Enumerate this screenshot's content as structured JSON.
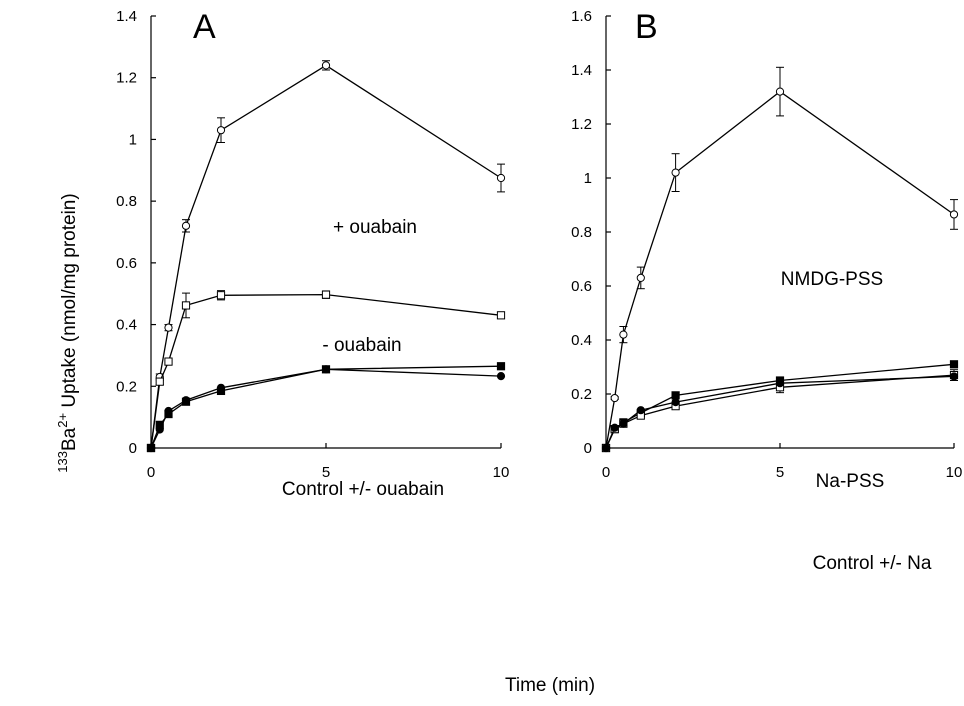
{
  "figure": {
    "xlabel": "Time (min)",
    "ylabel_prefix": "133",
    "ylabel_ion": "Ba",
    "ylabel_charge": "2+",
    "ylabel_rest": " Uptake  (nmol/mg protein)"
  },
  "chart_data": [
    {
      "type": "line",
      "panel": "A",
      "xlim": [
        0,
        10
      ],
      "ylim": [
        0,
        1.4
      ],
      "xticks": [
        0,
        5,
        10
      ],
      "yticks": [
        0,
        0.2,
        0.4,
        0.6,
        0.8,
        1,
        1.2,
        1.4
      ],
      "grid": false,
      "annotations": [
        "+ ouabain",
        "- ouabain",
        "Control +/- ouabain"
      ],
      "series": [
        {
          "marker": "open-circle",
          "x": [
            0,
            0.25,
            0.5,
            1,
            2,
            5,
            10
          ],
          "y": [
            0,
            0.23,
            0.39,
            0.72,
            1.03,
            1.24,
            0.875
          ],
          "err": [
            0,
            0.01,
            0.01,
            0.02,
            0.04,
            0.015,
            0.045
          ]
        },
        {
          "marker": "open-square",
          "x": [
            0,
            0.25,
            0.5,
            1,
            2,
            5,
            10
          ],
          "y": [
            0,
            0.215,
            0.28,
            0.462,
            0.495,
            0.497,
            0.43
          ],
          "err": [
            0,
            0.01,
            0.01,
            0.04,
            0.015,
            0.012,
            0.008
          ]
        },
        {
          "marker": "filled-square",
          "x": [
            0,
            0.25,
            0.5,
            1,
            2,
            5,
            10
          ],
          "y": [
            0,
            0.075,
            0.11,
            0.15,
            0.185,
            0.255,
            0.265
          ],
          "err": [
            0,
            0,
            0,
            0,
            0,
            0,
            0
          ]
        },
        {
          "marker": "filled-circle",
          "x": [
            0,
            0.25,
            0.5,
            1,
            2,
            5,
            10
          ],
          "y": [
            0,
            0.06,
            0.12,
            0.155,
            0.195,
            0.255,
            0.233
          ],
          "err": [
            0,
            0,
            0,
            0,
            0,
            0,
            0
          ]
        }
      ]
    },
    {
      "type": "line",
      "panel": "B",
      "xlim": [
        0,
        10
      ],
      "ylim": [
        0,
        1.6
      ],
      "xticks": [
        0,
        5,
        10
      ],
      "yticks": [
        0,
        0.2,
        0.4,
        0.6,
        0.8,
        1,
        1.2,
        1.4,
        1.6
      ],
      "grid": false,
      "annotations": [
        "NMDG-PSS",
        "Na-PSS",
        "Control +/- Na"
      ],
      "series": [
        {
          "marker": "open-circle",
          "x": [
            0,
            0.25,
            0.5,
            1,
            2,
            5,
            10
          ],
          "y": [
            0,
            0.185,
            0.42,
            0.63,
            1.02,
            1.32,
            0.865
          ],
          "err": [
            0,
            0.005,
            0.03,
            0.04,
            0.07,
            0.09,
            0.055
          ]
        },
        {
          "marker": "filled-square",
          "x": [
            0,
            0.25,
            0.5,
            1,
            2,
            5,
            10
          ],
          "y": [
            0,
            0.07,
            0.095,
            0.13,
            0.195,
            0.25,
            0.31
          ],
          "err": [
            0,
            0,
            0,
            0,
            0,
            0,
            0
          ]
        },
        {
          "marker": "open-square",
          "x": [
            0,
            0.25,
            0.5,
            1,
            2,
            5,
            10
          ],
          "y": [
            0,
            0.07,
            0.09,
            0.12,
            0.155,
            0.225,
            0.27
          ],
          "err": [
            0,
            0,
            0,
            0,
            0,
            0.02,
            0.02
          ]
        },
        {
          "marker": "filled-circle",
          "x": [
            0,
            0.25,
            0.5,
            1,
            2,
            5,
            10
          ],
          "y": [
            0,
            0.075,
            0.09,
            0.14,
            0.17,
            0.24,
            0.265
          ],
          "err": [
            0,
            0,
            0,
            0,
            0,
            0,
            0
          ]
        }
      ]
    }
  ]
}
